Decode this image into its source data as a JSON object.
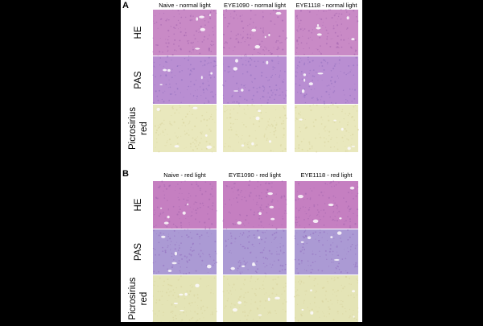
{
  "panels": [
    {
      "label": "A",
      "columns": [
        "Naive - normal light",
        "EYE1090 - normal light",
        "EYE1118 - normal light"
      ],
      "rows": [
        {
          "lines": [
            "HE"
          ]
        },
        {
          "lines": [
            "PAS"
          ]
        },
        {
          "lines": [
            "Picrosirius",
            "red"
          ]
        }
      ]
    },
    {
      "label": "B",
      "columns": [
        "Naive - red light",
        "EYE1090 - red light",
        "EYE1118 - red light"
      ],
      "rows": [
        {
          "lines": [
            "HE"
          ]
        },
        {
          "lines": [
            "PAS"
          ]
        },
        {
          "lines": [
            "Picrosirius",
            "red"
          ]
        }
      ]
    }
  ]
}
